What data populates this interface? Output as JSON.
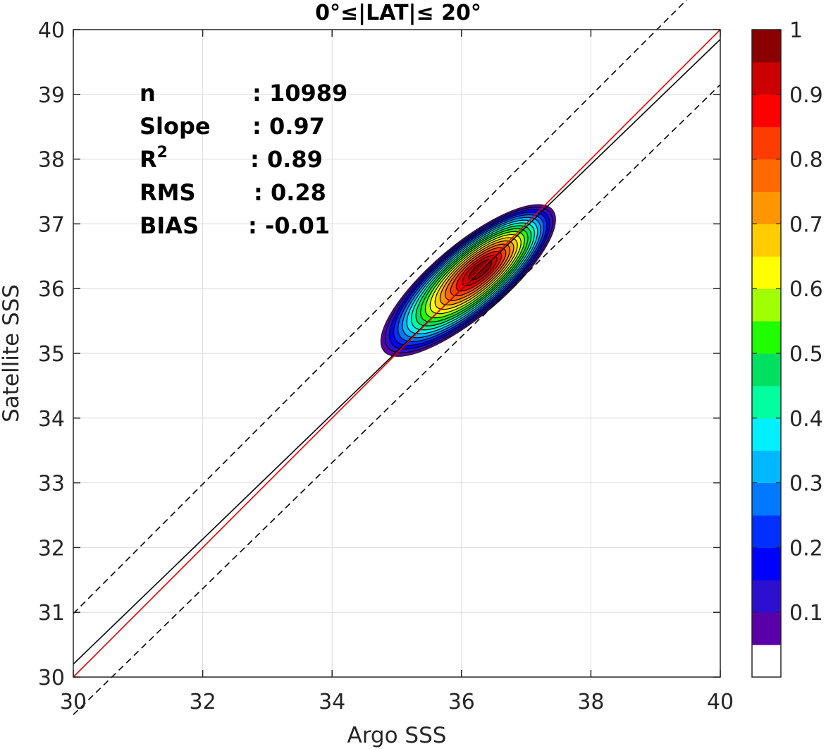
{
  "chart_data": {
    "type": "contour",
    "title": "0°≤|LAT|≤ 20°",
    "xlabel": "Argo SSS",
    "ylabel": "Satellite SSS",
    "xlim": [
      30,
      40
    ],
    "ylim": [
      30,
      40
    ],
    "xticks": [
      "30",
      "32",
      "34",
      "36",
      "38",
      "40"
    ],
    "yticks": [
      "30",
      "31",
      "32",
      "33",
      "34",
      "35",
      "36",
      "37",
      "38",
      "39",
      "40"
    ],
    "grid": true,
    "lines": {
      "one_to_one": {
        "color": "#e60000",
        "points": [
          [
            30,
            30
          ],
          [
            40,
            40
          ]
        ]
      },
      "regression": {
        "color": "#000000",
        "points": [
          [
            30,
            30.2
          ],
          [
            40,
            39.85
          ]
        ]
      },
      "upper_bound": {
        "color": "#000000",
        "style": "dashed",
        "points": [
          [
            30,
            30.98
          ],
          [
            40,
            40.98
          ]
        ]
      },
      "lower_bound": {
        "color": "#000000",
        "style": "dashed",
        "points": [
          [
            30,
            29.42
          ],
          [
            40,
            39.15
          ]
        ]
      }
    },
    "density": {
      "center": [
        36.3,
        36.3
      ],
      "levels": [
        0.05,
        0.1,
        0.2,
        0.3,
        0.4,
        0.5,
        0.6,
        0.7,
        0.8,
        0.9
      ]
    },
    "stats": [
      {
        "label": "n",
        "value": ": 10989"
      },
      {
        "label": "Slope",
        "value": ": 0.97"
      },
      {
        "label": "R",
        "sup": "2",
        "value": ": 0.89"
      },
      {
        "label": "RMS",
        "value": ": 0.28"
      },
      {
        "label": "BIAS",
        "value": ": -0.01"
      }
    ],
    "colorbar": {
      "range": [
        0,
        1
      ],
      "tick_labels": [
        "0.1",
        "0.2",
        "0.3",
        "0.4",
        "0.5",
        "0.6",
        "0.7",
        "0.8",
        "0.9",
        "1"
      ],
      "tick_values": [
        0.1,
        0.2,
        0.3,
        0.4,
        0.5,
        0.6,
        0.7,
        0.8,
        0.9,
        1.0
      ],
      "colors": [
        "#ffffff",
        "#5a00a8",
        "#2d0fcf",
        "#0000ff",
        "#0030ff",
        "#0078ff",
        "#00b8ff",
        "#00f0ff",
        "#00ffa0",
        "#00e060",
        "#20ff00",
        "#a0ff00",
        "#ffff00",
        "#ffcc00",
        "#ff9600",
        "#ff6a00",
        "#ff3c00",
        "#ff0000",
        "#cc0000",
        "#8a0000"
      ]
    }
  }
}
